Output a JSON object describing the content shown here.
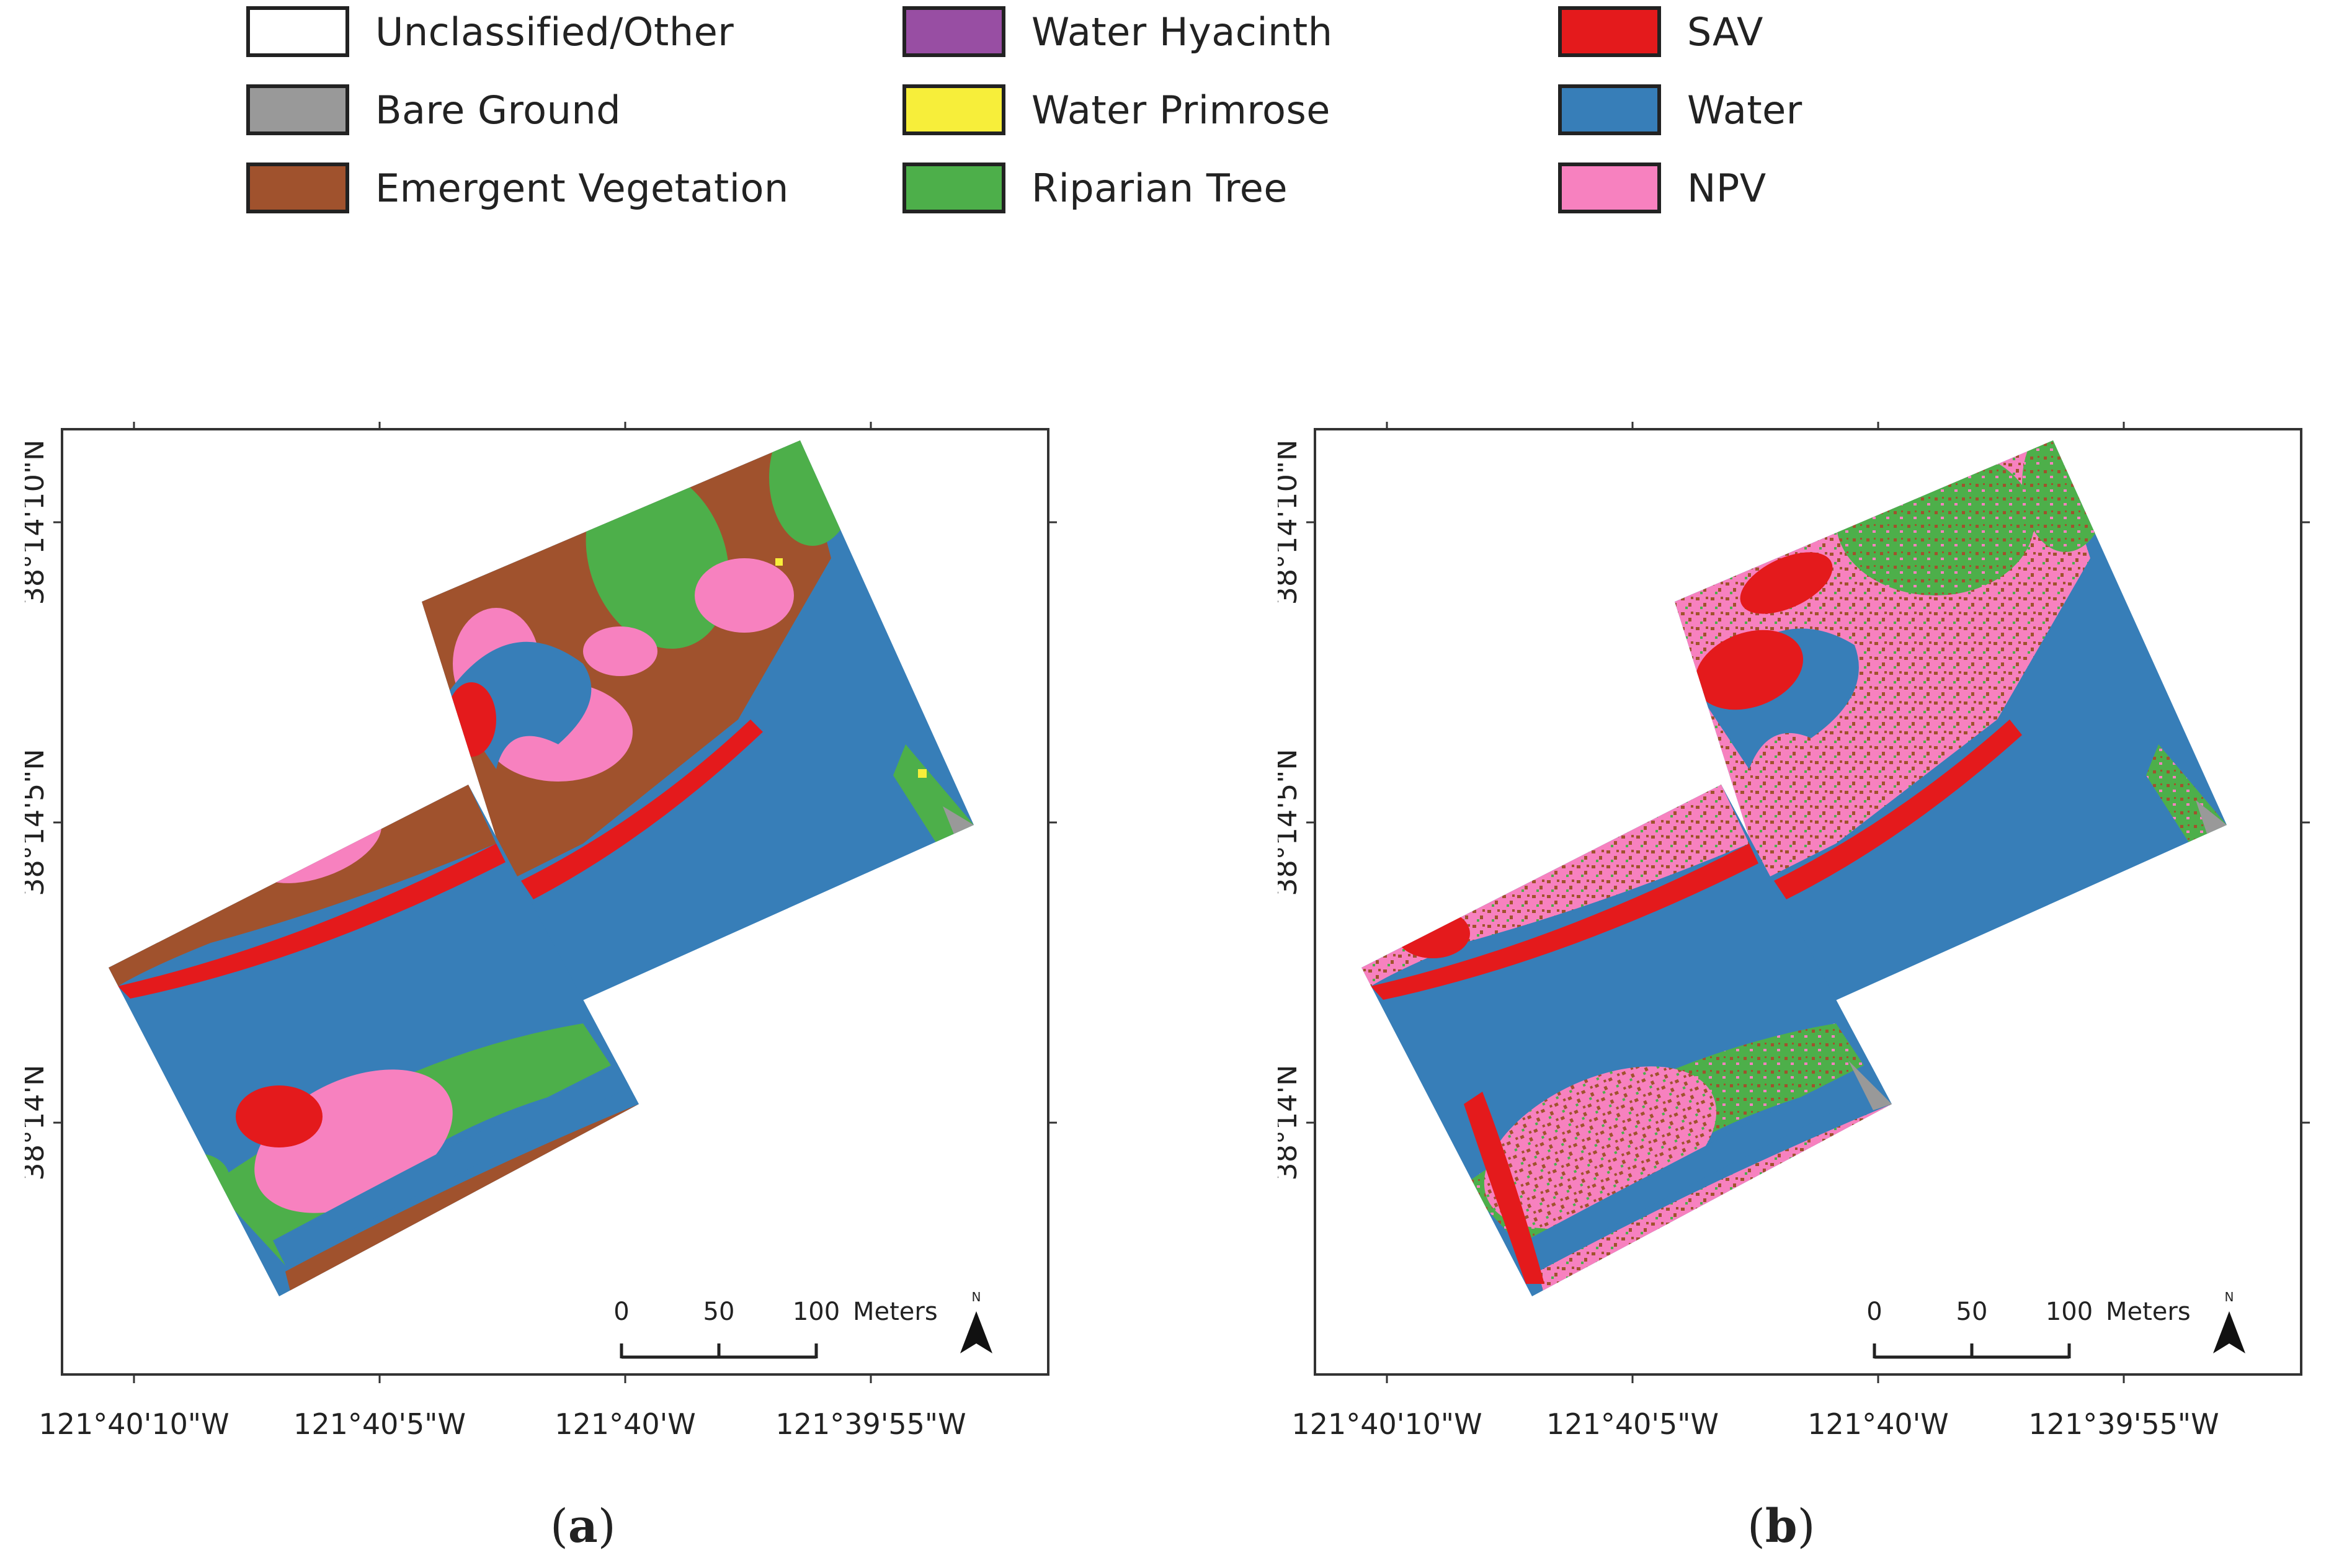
{
  "legend": {
    "items": [
      {
        "label": "Unclassified/Other",
        "color": "#ffffff"
      },
      {
        "label": "Bare Ground",
        "color": "#999999"
      },
      {
        "label": "Emergent Vegetation",
        "color": "#a0522d"
      },
      {
        "label": "Water Hyacinth",
        "color": "#984ea3"
      },
      {
        "label": "Water Primrose",
        "color": "#f7ee3a"
      },
      {
        "label": "Riparian Tree",
        "color": "#4daf4a"
      },
      {
        "label": "SAV",
        "color": "#e41a1c"
      },
      {
        "label": "Water",
        "color": "#377eb8"
      },
      {
        "label": "NPV",
        "color": "#f781bf"
      }
    ]
  },
  "panels": [
    {
      "id": "a",
      "caption_open": "(",
      "caption_letter": "a",
      "caption_close": ")",
      "x_ticks": [
        "121°40'10\"W",
        "121°40'5\"W",
        "121°40'W",
        "121°39'55\"W"
      ],
      "y_ticks": [
        "38°14'10\"N",
        "38°14'5\"N",
        "38°14'N"
      ],
      "scale_bar": {
        "labels": [
          "0",
          "50",
          "100"
        ],
        "unit": "Meters"
      },
      "north_label": "N"
    },
    {
      "id": "b",
      "caption_open": "(",
      "caption_letter": "b",
      "caption_close": ")",
      "x_ticks": [
        "121°40'10\"W",
        "121°40'5\"W",
        "121°40'W",
        "121°39'55\"W"
      ],
      "y_ticks": [
        "38°14'10\"N",
        "38°14'5\"N",
        "38°14'N"
      ],
      "scale_bar": {
        "labels": [
          "0",
          "50",
          "100"
        ],
        "unit": "Meters"
      },
      "north_label": "N"
    }
  ]
}
